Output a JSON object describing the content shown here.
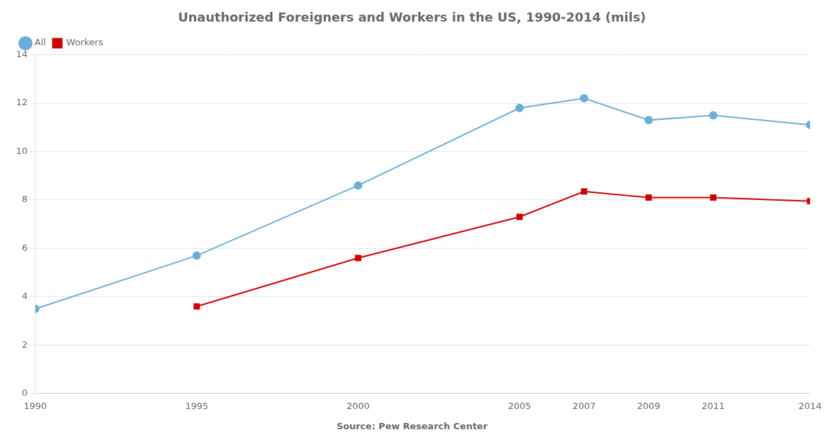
{
  "chart_data": {
    "type": "line",
    "title": "Unauthorized Foreigners and Workers in the US, 1990-2014 (mils)",
    "annotations": [
      "Source: Pew Research Center"
    ],
    "series": [
      {
        "name": "All",
        "color": "#6baed6",
        "marker": "circle",
        "x": [
          1990,
          1995,
          2000,
          2005,
          2007,
          2009,
          2011,
          2014
        ],
        "values": [
          3.5,
          5.7,
          8.6,
          11.8,
          12.2,
          11.3,
          11.5,
          11.1
        ]
      },
      {
        "name": "Workers",
        "color": "#cc0000",
        "marker": "square",
        "x": [
          1995,
          2000,
          2005,
          2007,
          2009,
          2011,
          2014
        ],
        "values": [
          3.6,
          5.6,
          7.3,
          8.35,
          8.1,
          8.1,
          7.95
        ]
      }
    ],
    "xlim": [
      1990,
      2014
    ],
    "xticks": [
      1990,
      1995,
      2000,
      2005,
      2007,
      2009,
      2011,
      2014
    ],
    "ylim": [
      0,
      14
    ],
    "yticks": [
      0,
      2,
      4,
      6,
      8,
      10,
      12,
      14
    ],
    "grid": "y",
    "legend": "upper left"
  }
}
